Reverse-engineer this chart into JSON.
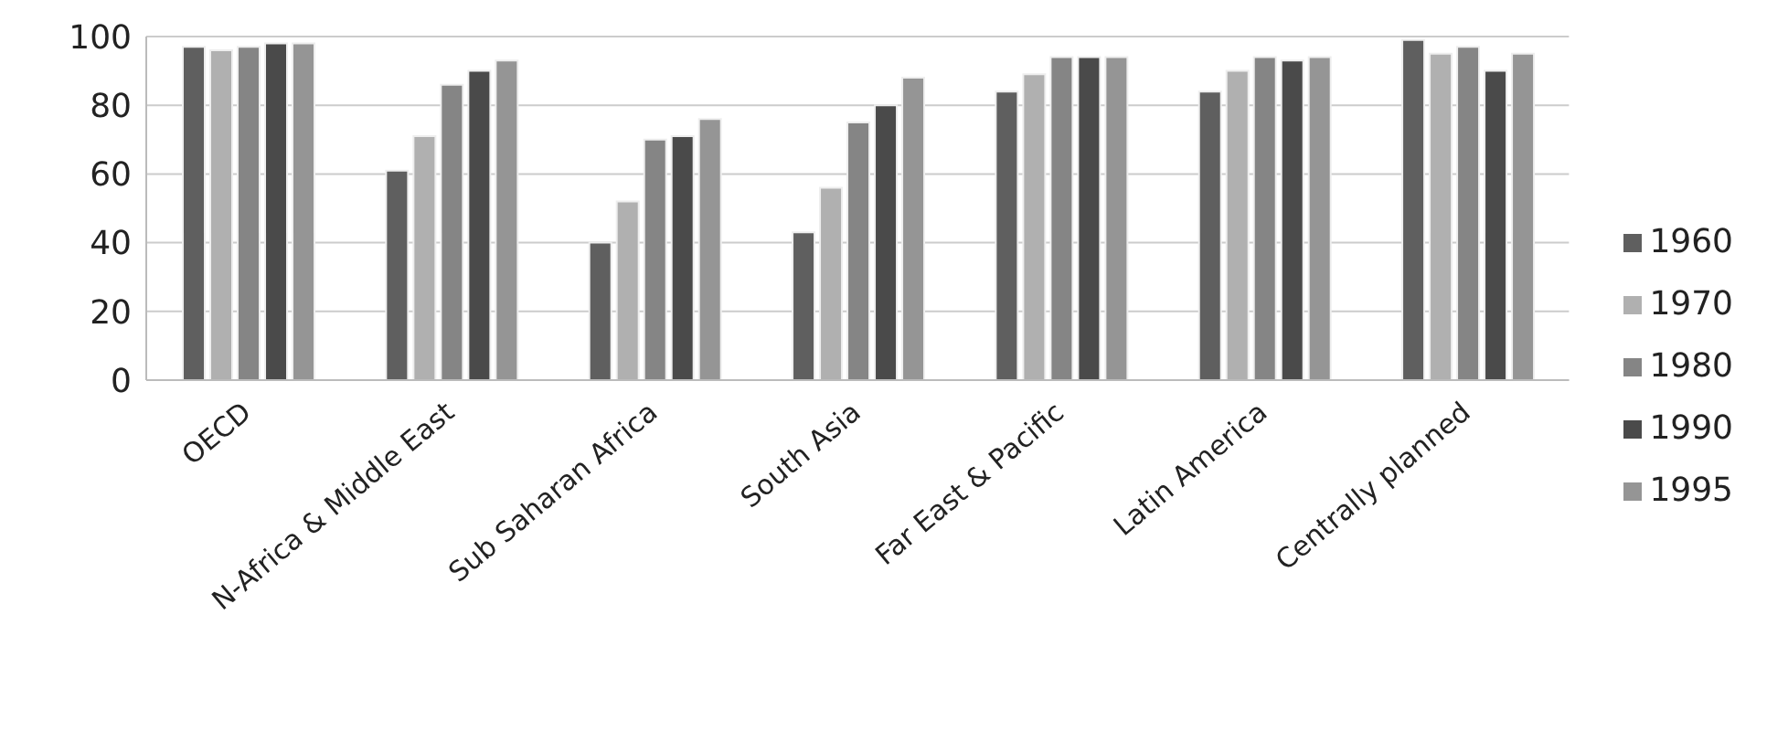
{
  "chart_data": {
    "type": "bar",
    "categories": [
      "OECD",
      "N-Africa & Middle East",
      "Sub Saharan Africa",
      "South Asia",
      "Far East & Pacific",
      "Latin America",
      "Centrally planned"
    ],
    "series": [
      {
        "name": "1960",
        "color": "#5f5f5f",
        "values": [
          97,
          61,
          40,
          43,
          84,
          84,
          99
        ]
      },
      {
        "name": "1970",
        "color": "#b0b0b0",
        "values": [
          96,
          71,
          52,
          56,
          89,
          90,
          95
        ]
      },
      {
        "name": "1980",
        "color": "#858585",
        "values": [
          97,
          86,
          70,
          75,
          94,
          94,
          97
        ]
      },
      {
        "name": "1990",
        "color": "#4a4a4a",
        "values": [
          98,
          90,
          71,
          80,
          94,
          93,
          90
        ]
      },
      {
        "name": "1995",
        "color": "#959595",
        "values": [
          98,
          93,
          76,
          88,
          94,
          94,
          95
        ]
      }
    ],
    "ylim": [
      0,
      100
    ],
    "yticks": [
      0,
      20,
      40,
      60,
      80,
      100
    ],
    "grid": "y",
    "legend": "right"
  }
}
